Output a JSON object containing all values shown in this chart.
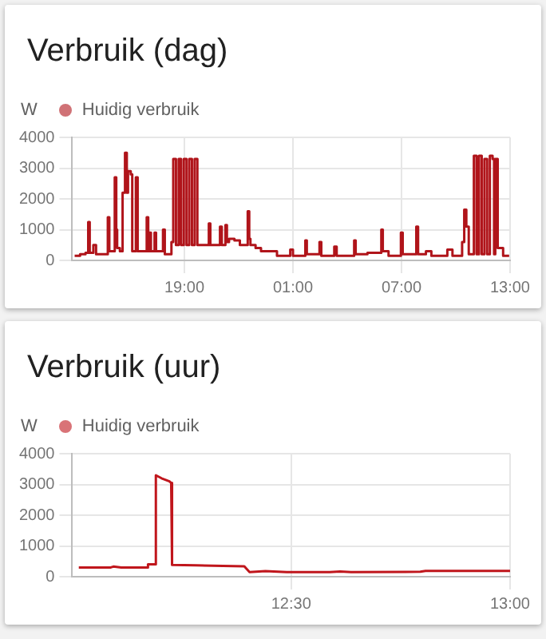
{
  "chart_data": [
    {
      "type": "step",
      "title": "Verbruik (dag)",
      "ylabel": "W",
      "legend": "top left",
      "grid": true,
      "xlim": [
        "--01-01T12:48",
        "--01-02T13:00"
      ],
      "xticks": [
        {
          "value": "--01-01T19:00",
          "label": "19:00"
        },
        {
          "value": "--01-02T01:00",
          "label": "01:00"
        },
        {
          "value": "--01-02T07:00",
          "label": "07:00"
        },
        {
          "value": "--01-02T13:00",
          "label": "13:00"
        }
      ],
      "ylim": [
        0,
        4000
      ],
      "yticks": [
        0,
        1000,
        2000,
        3000,
        4000
      ],
      "x": [
        "--01-01T12:56",
        "--01-01T13:14",
        "--01-01T13:32",
        "--01-01T13:41",
        "--01-01T13:46",
        "--01-01T13:58",
        "--01-01T14:07",
        "--01-01T14:13",
        "--01-01T14:25",
        "--01-01T14:46",
        "--01-01T14:51",
        "--01-01T15:00",
        "--01-01T15:09",
        "--01-01T15:14",
        "--01-01T15:17",
        "--01-01T15:26",
        "--01-01T15:35",
        "--01-01T15:43",
        "--01-01T15:49",
        "--01-01T15:53",
        "--01-01T16:02",
        "--01-01T16:07",
        "--01-01T16:19",
        "--01-01T16:25",
        "--01-01T16:28",
        "--01-01T16:55",
        "--01-01T17:00",
        "--01-01T17:04",
        "--01-01T17:09",
        "--01-01T17:21",
        "--01-01T17:26",
        "--01-01T17:30",
        "--01-01T17:49",
        "--01-01T17:55",
        "--01-01T17:56",
        "--01-01T18:17",
        "--01-01T18:23",
        "--01-01T18:32",
        "--01-01T18:41",
        "--01-01T18:49",
        "--01-01T18:58",
        "--01-01T19:07",
        "--01-01T19:16",
        "--01-01T19:25",
        "--01-01T19:34",
        "--01-01T19:43",
        "--01-01T20:21",
        "--01-01T20:26",
        "--01-01T20:35",
        "--01-01T20:58",
        "--01-01T21:04",
        "--01-01T21:16",
        "--01-01T21:21",
        "--01-01T21:28",
        "--01-01T21:46",
        "--01-01T22:04",
        "--01-01T22:30",
        "--01-01T22:35",
        "--01-01T22:39",
        "--01-01T22:56",
        "--01-01T23:14",
        "--01-01T23:49",
        "--01-02T00:07",
        "--01-02T00:51",
        "--01-02T01:00",
        "--01-02T01:41",
        "--01-02T01:46",
        "--01-02T01:53",
        "--01-02T02:28",
        "--01-02T02:34",
        "--01-02T02:46",
        "--01-02T03:17",
        "--01-02T03:25",
        "--01-02T03:30",
        "--01-02T04:23",
        "--01-02T04:28",
        "--01-02T05:07",
        "--01-02T05:53",
        "--01-02T05:58",
        "--01-02T06:17",
        "--01-02T06:58",
        "--01-02T07:04",
        "--01-02T07:49",
        "--01-02T07:55",
        "--01-02T08:21",
        "--01-02T08:39",
        "--01-02T09:32",
        "--01-02T09:49",
        "--01-02T10:21",
        "--01-02T10:28",
        "--01-02T10:35",
        "--01-02T10:43",
        "--01-02T11:00",
        "--01-02T11:09",
        "--01-02T11:17",
        "--01-02T11:26",
        "--01-02T11:35",
        "--01-02T11:44",
        "--01-02T11:53",
        "--01-02T12:02",
        "--01-02T12:07",
        "--01-02T12:11",
        "--01-02T12:19",
        "--01-02T12:37",
        "--01-02T12:57"
      ],
      "series": [
        {
          "name": "Huidig verbruik",
          "color": "#b0141a",
          "values": [
            150,
            200,
            250,
            1250,
            250,
            500,
            200,
            200,
            200,
            1400,
            300,
            300,
            2700,
            1000,
            400,
            300,
            2200,
            3500,
            2200,
            2900,
            2800,
            300,
            2700,
            300,
            300,
            1400,
            300,
            900,
            300,
            900,
            300,
            300,
            1000,
            200,
            200,
            600,
            3300,
            500,
            3300,
            500,
            3300,
            500,
            3300,
            500,
            3300,
            500,
            1200,
            500,
            500,
            1100,
            500,
            1150,
            600,
            700,
            650,
            500,
            1600,
            700,
            500,
            400,
            300,
            300,
            150,
            350,
            150,
            650,
            200,
            200,
            600,
            150,
            150,
            450,
            150,
            150,
            650,
            200,
            250,
            1000,
            300,
            150,
            900,
            200,
            1100,
            200,
            300,
            150,
            350,
            150,
            600,
            1650,
            1100,
            200,
            3400,
            200,
            3400,
            200,
            3300,
            200,
            3400,
            3300,
            200,
            3300,
            400,
            150,
            150
          ]
        }
      ]
    },
    {
      "type": "line",
      "title": "Verbruik (uur)",
      "ylabel": "W",
      "legend": "top left",
      "grid": true,
      "xlim": [
        12.0,
        13.0
      ],
      "xticks": [
        {
          "value": 12.5,
          "label": "12:30"
        },
        {
          "value": 13,
          "label": "13:00"
        }
      ],
      "ylim": [
        0,
        4000
      ],
      "yticks": [
        0,
        1000,
        2000,
        3000,
        4000
      ],
      "x": [
        12.015,
        12.088,
        12.094,
        12.112,
        12.171,
        12.173,
        12.189,
        12.191,
        12.204,
        12.222,
        12.226,
        12.228,
        12.283,
        12.344,
        12.393,
        12.405,
        12.441,
        12.49,
        12.588,
        12.612,
        12.637,
        12.795,
        12.807,
        13.0
      ],
      "series": [
        {
          "name": "Huidig verbruik",
          "color": "#c0161c",
          "values": [
            300,
            300,
            330,
            300,
            300,
            400,
            400,
            3300,
            3200,
            3100,
            3050,
            380,
            370,
            350,
            340,
            150,
            180,
            150,
            150,
            170,
            150,
            160,
            190,
            190
          ]
        }
      ]
    }
  ]
}
